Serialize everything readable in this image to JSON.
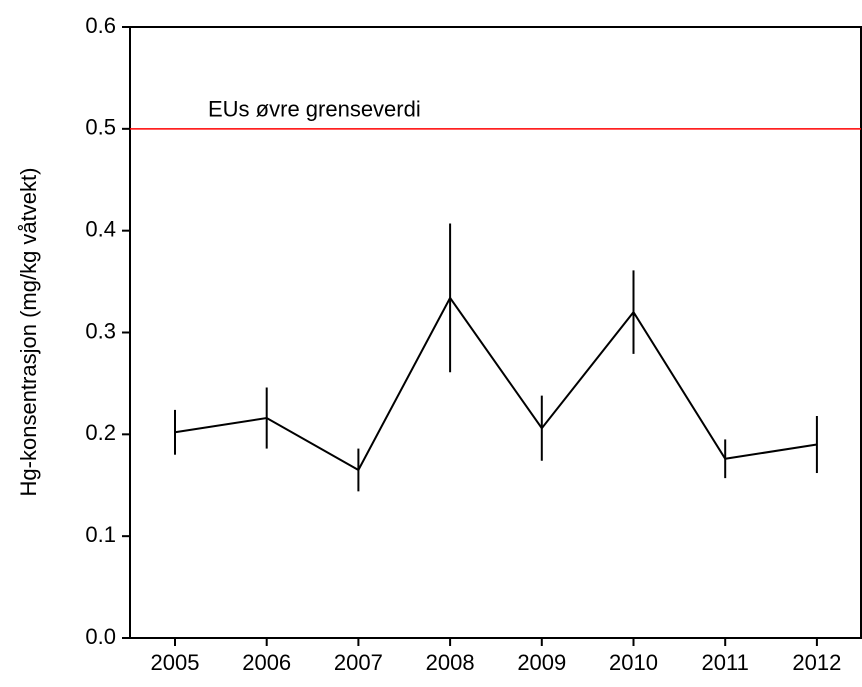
{
  "chart_data": {
    "type": "line",
    "y_label": "Hg-konsentrasjon (mg/kg våtvekt)",
    "categories": [
      "2005",
      "2006",
      "2007",
      "2008",
      "2009",
      "2010",
      "2011",
      "2012"
    ],
    "values": [
      0.202,
      0.216,
      0.165,
      0.334,
      0.206,
      0.32,
      0.176,
      0.19
    ],
    "errors": [
      0.022,
      0.03,
      0.021,
      0.073,
      0.032,
      0.041,
      0.019,
      0.028
    ],
    "color": "#000000",
    "ylim": [
      0,
      0.6
    ],
    "yticks": [
      {
        "value": 0,
        "label": "0.0"
      },
      0.1,
      0.2,
      0.3,
      0.4,
      0.5,
      0.6
    ],
    "reference_line": {
      "value": 0.5,
      "label": "EUs øvre grenseverdi",
      "color": "#ff0000"
    }
  }
}
